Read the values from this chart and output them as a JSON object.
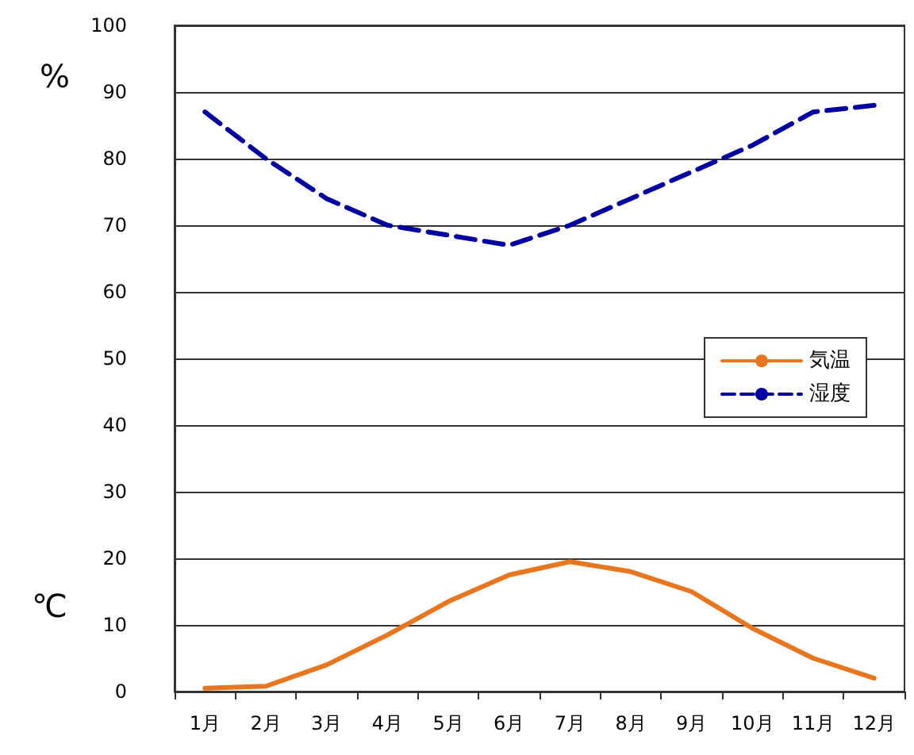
{
  "chart_data": {
    "type": "line",
    "ylabel": "%",
    "annotations": [
      "℃"
    ],
    "categories": [
      "1月",
      "2月",
      "3月",
      "4月",
      "5月",
      "6月",
      "7月",
      "8月",
      "9月",
      "10月",
      "11月",
      "12月"
    ],
    "series": [
      {
        "name": "気温",
        "color": "#e8761e",
        "line_style": "solid",
        "values": [
          0.5,
          0.8,
          4,
          8.5,
          13.5,
          17.5,
          19.5,
          18,
          15,
          9.5,
          5,
          2
        ]
      },
      {
        "name": "湿度",
        "color": "#0000a0",
        "line_style": "dashed",
        "values": [
          87,
          80,
          74,
          70,
          68.5,
          67,
          70,
          74,
          78,
          82,
          87,
          88
        ]
      }
    ],
    "ylim": [
      0,
      100
    ],
    "yticks": [
      0,
      10,
      20,
      30,
      40,
      50,
      60,
      70,
      80,
      90,
      100
    ],
    "grid": "y",
    "legend": "right",
    "marker": "none"
  }
}
